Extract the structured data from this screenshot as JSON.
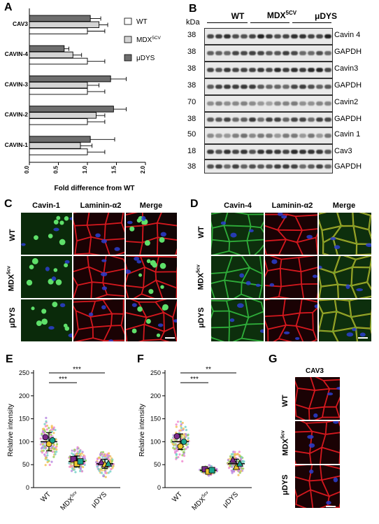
{
  "panel_letters": {
    "a": "A",
    "b": "B",
    "c": "C",
    "d": "D",
    "e": "E",
    "f": "F",
    "g": "G"
  },
  "panelA": {
    "xlabel": "Fold difference from WT",
    "legend": [
      {
        "label": "WT",
        "color": "#ffffff"
      },
      {
        "label": "MDX",
        "sup": "5CV",
        "color": "#d4d4d4"
      },
      {
        "label": "μDYS",
        "color": "#6e6e6e"
      }
    ]
  },
  "panelB": {
    "groups": [
      {
        "label": "WT"
      },
      {
        "label": "MDX",
        "sup": "5CV"
      },
      {
        "label": "μDYS"
      }
    ],
    "kda_label": "kDa",
    "rows": [
      {
        "kda": "38",
        "label": "Cavin 4",
        "tone": "strong"
      },
      {
        "kda": "38",
        "label": "GAPDH",
        "tone": "medium"
      },
      {
        "kda": "38",
        "label": "Cavin3",
        "tone": "strong"
      },
      {
        "kda": "38",
        "label": "GAPDH",
        "tone": "medium"
      },
      {
        "kda": "70",
        "label": "Cavin2",
        "tone": "faint"
      },
      {
        "kda": "38",
        "label": "GAPDH",
        "tone": "medium"
      },
      {
        "kda": "50",
        "label": "Cavin 1",
        "tone": "faint"
      },
      {
        "kda": "18",
        "label": "Cav3",
        "tone": "strong"
      },
      {
        "kda": "38",
        "label": "GAPDH",
        "tone": "medium"
      }
    ]
  },
  "panelC": {
    "columns": [
      "Cavin-1",
      "Laminin-α2",
      "Merge"
    ],
    "rows": [
      {
        "label": "WT"
      },
      {
        "label": "MDX",
        "sup": "5cv"
      },
      {
        "label": "μDYS"
      }
    ]
  },
  "panelD": {
    "columns": [
      "Cavin-4",
      "Laminin-α2",
      "Merge"
    ],
    "rows": [
      {
        "label": "WT"
      },
      {
        "label": "MDX",
        "sup": "5cv"
      },
      {
        "label": "μDYS"
      }
    ]
  },
  "panelG": {
    "title": "CAV3",
    "rows": [
      {
        "label": "WT"
      },
      {
        "label": "MDX",
        "sup": "5cv"
      },
      {
        "label": "μDYS"
      }
    ]
  },
  "colors": {
    "green_channel": "#1f8a2a",
    "red_channel": "#c0161c",
    "blue_channel": "#2233aa",
    "dot_palette": [
      "#f08ad0",
      "#78d2c8",
      "#f5c25a",
      "#b88be0",
      "#9bd05a"
    ],
    "mouse_colors": [
      "#7a2a8a",
      "#f0c830",
      "#1aa38b"
    ]
  },
  "chart_data": [
    {
      "id": "A",
      "type": "bar",
      "orientation": "horizontal",
      "categories": [
        "CAV3",
        "CAVIN-4",
        "CAVIN-3",
        "CAVIN-2",
        "CAVIN-1"
      ],
      "series": [
        {
          "name": "WT",
          "values": [
            1.0,
            1.0,
            1.0,
            1.0,
            1.0
          ],
          "errors": [
            0.3,
            0.3,
            0.3,
            0.3,
            0.3
          ]
        },
        {
          "name": "MDX5CV",
          "values": [
            1.2,
            0.75,
            1.0,
            1.15,
            0.88
          ],
          "errors": [
            0.15,
            0.15,
            0.2,
            0.15,
            0.2
          ]
        },
        {
          "name": "μDYS",
          "values": [
            1.05,
            0.6,
            1.4,
            1.45,
            1.05
          ],
          "errors": [
            0.18,
            0.08,
            0.27,
            0.22,
            0.42
          ]
        }
      ],
      "xlabel": "Fold difference from WT",
      "xlim": [
        0.0,
        2.0
      ],
      "xticks": [
        "0.0",
        "0.5",
        "1.0",
        "1.5",
        "2.0"
      ],
      "grid": false,
      "legend": "top-right"
    },
    {
      "id": "E",
      "type": "scatter",
      "categories": [
        "WT",
        "MDX5cv",
        "μDYS"
      ],
      "ylabel": "Relative intensity",
      "ylim": [
        0,
        250
      ],
      "yticks": [
        "0",
        "50",
        "100",
        "150",
        "200",
        "250"
      ],
      "group_means": [
        100,
        57,
        52
      ],
      "group_sd": [
        20,
        12,
        10
      ],
      "mouse_means": [
        [
          110,
          95,
          103
        ],
        [
          62,
          52,
          57
        ],
        [
          55,
          50,
          52
        ]
      ],
      "comparisons": [
        {
          "from": "WT",
          "to": "MDX5cv",
          "label": "***"
        },
        {
          "from": "WT",
          "to": "μDYS",
          "label": "***"
        }
      ]
    },
    {
      "id": "F",
      "type": "scatter",
      "categories": [
        "WT",
        "MDX5cv",
        "μDYS"
      ],
      "ylabel": "Relative intensity",
      "ylim": [
        0,
        250
      ],
      "yticks": [
        "0",
        "50",
        "100",
        "150",
        "200",
        "250"
      ],
      "group_means": [
        100,
        38,
        52
      ],
      "group_sd": [
        17,
        4,
        10
      ],
      "mouse_means": [
        [
          112,
          90,
          100
        ],
        [
          40,
          35,
          38
        ],
        [
          60,
          45,
          52
        ]
      ],
      "comparisons": [
        {
          "from": "WT",
          "to": "MDX5cv",
          "label": "***"
        },
        {
          "from": "WT",
          "to": "μDYS",
          "label": "**"
        }
      ]
    }
  ]
}
